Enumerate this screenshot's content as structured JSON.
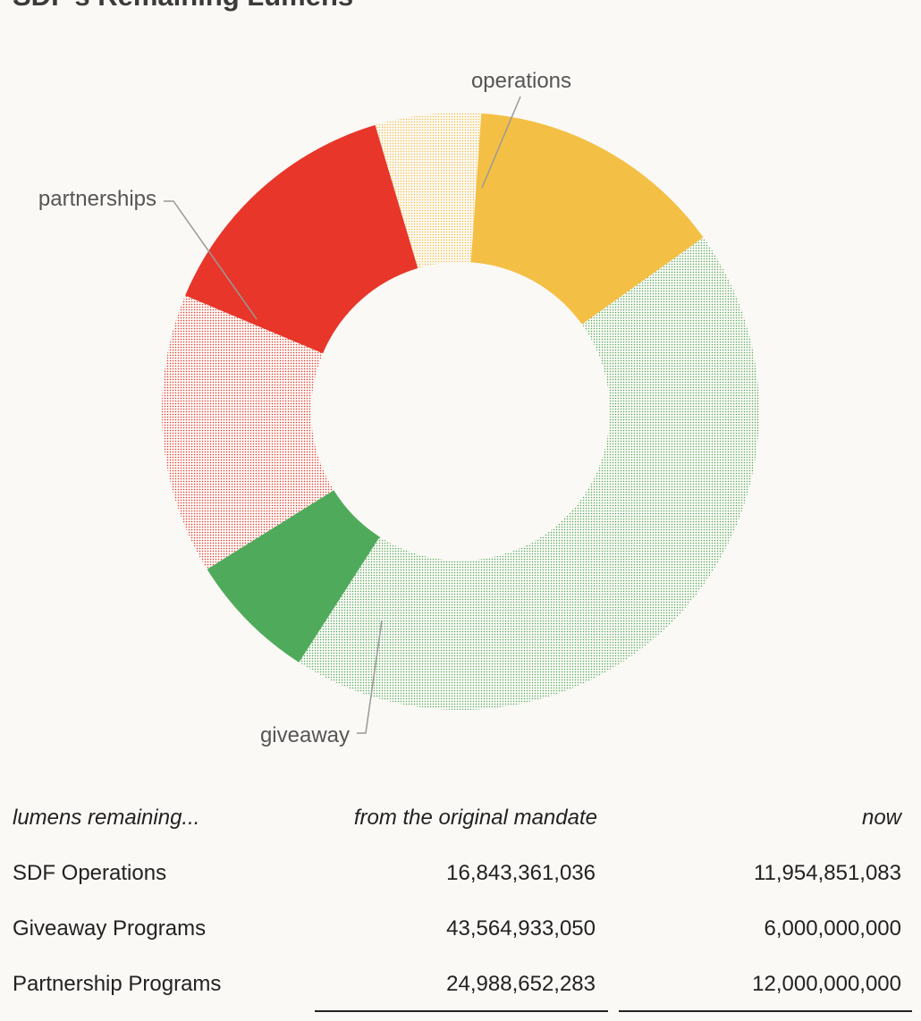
{
  "title": "SDF's Remaining Lumens",
  "chart_data": {
    "type": "pie",
    "variant": "donut",
    "segments": [
      {
        "key": "operations-now",
        "label": "operations",
        "value": 11954851083,
        "color": "#f4bf45",
        "pattern": "solid"
      },
      {
        "key": "giveaway-mandate",
        "label": "",
        "value": 37564933050,
        "color": "#4fab5b",
        "pattern": "dotted"
      },
      {
        "key": "giveaway-now",
        "label": "giveaway",
        "value": 6000000000,
        "color": "#4fab5b",
        "pattern": "solid"
      },
      {
        "key": "partnerships-mandate",
        "label": "",
        "value": 12988652283,
        "color": "#e8362a",
        "pattern": "dotted"
      },
      {
        "key": "partnerships-now",
        "label": "partnerships",
        "value": 12000000000,
        "color": "#e8362a",
        "pattern": "solid"
      },
      {
        "key": "operations-mandate",
        "label": "",
        "value": 4888509953,
        "color": "#f4bf45",
        "pattern": "dotted"
      }
    ]
  },
  "table": {
    "headers": [
      "lumens remaining...",
      "from the original mandate",
      "now"
    ],
    "rows": [
      {
        "label": "SDF Operations",
        "original": "16,843,361,036",
        "now": "11,954,851,083"
      },
      {
        "label": "Giveaway Programs",
        "original": "43,564,933,050",
        "now": "6,000,000,000"
      },
      {
        "label": "Partnership Programs",
        "original": "24,988,652,283",
        "now": "12,000,000,000"
      }
    ]
  }
}
